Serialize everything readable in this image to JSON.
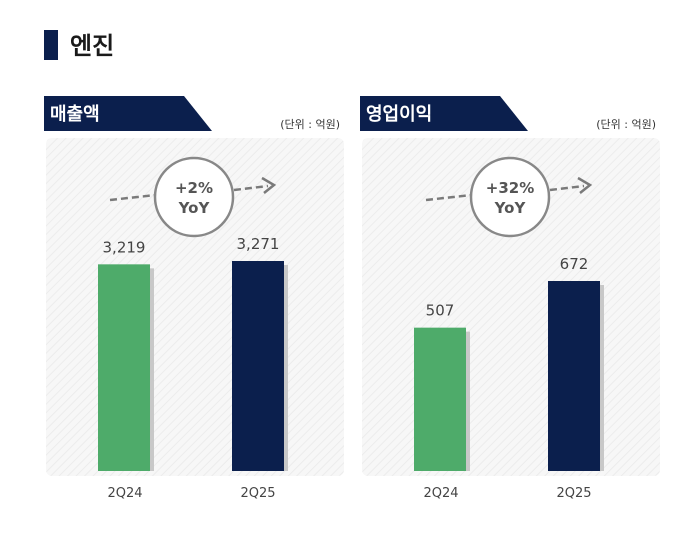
{
  "page": {
    "title": "엔진"
  },
  "colors": {
    "navy": "#0b1f4d",
    "green": "#4eab6a",
    "gray": "#7a7a7a"
  },
  "chart_data": [
    {
      "type": "bar",
      "title": "매출액",
      "unit": "(단위 : 억원)",
      "categories": [
        "2Q24",
        "2Q25"
      ],
      "values": [
        3219,
        3271
      ],
      "value_labels": [
        "3,219",
        "3,271"
      ],
      "growth_label": [
        "+2%",
        "YoY"
      ],
      "bar_colors": [
        "#4eab6a",
        "#0b1f4d"
      ]
    },
    {
      "type": "bar",
      "title": "영업이익",
      "unit": "(단위 : 억원)",
      "categories": [
        "2Q24",
        "2Q25"
      ],
      "values": [
        507,
        672
      ],
      "value_labels": [
        "507",
        "672"
      ],
      "growth_label": [
        "+32%",
        "YoY"
      ],
      "bar_colors": [
        "#4eab6a",
        "#0b1f4d"
      ]
    }
  ]
}
